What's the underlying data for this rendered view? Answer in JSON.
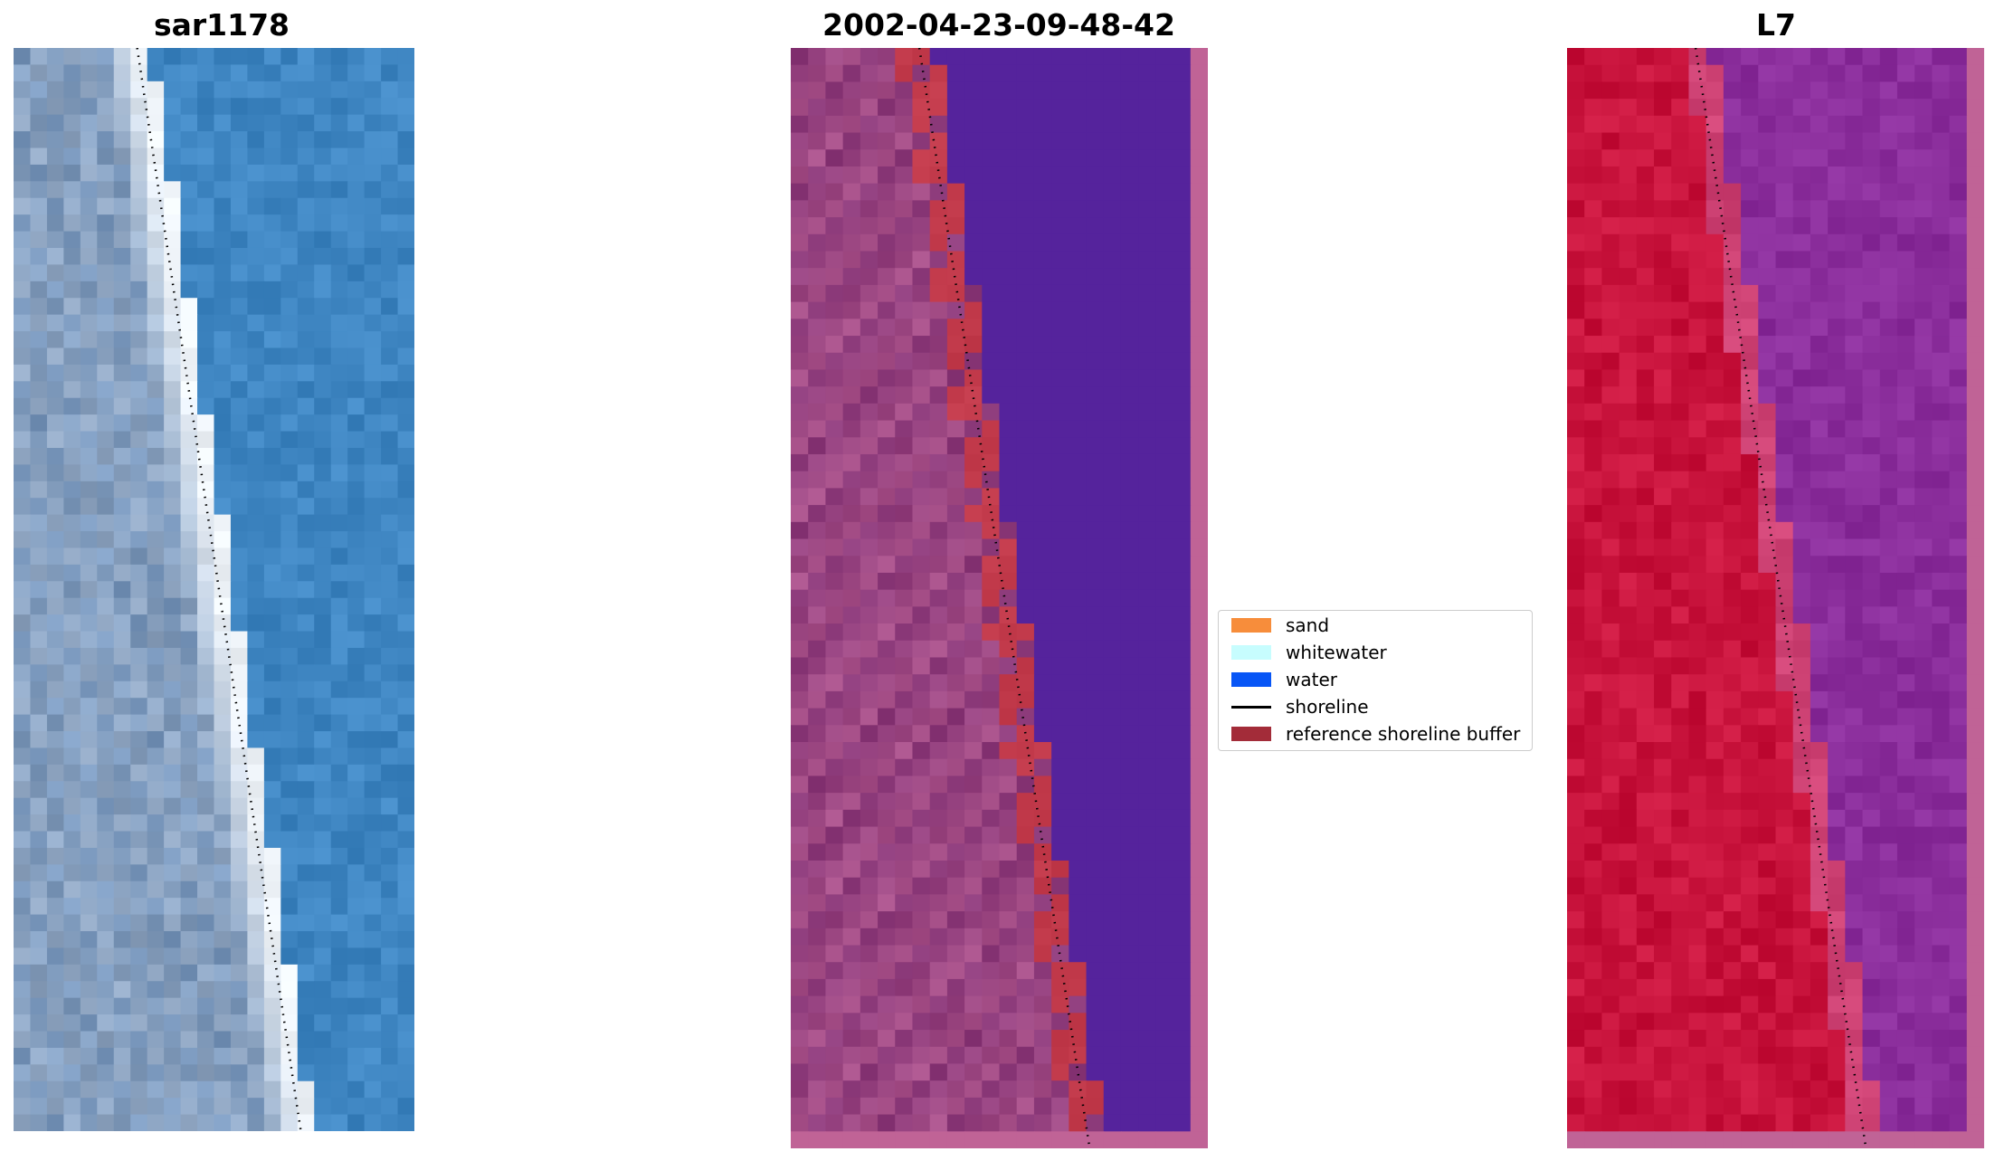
{
  "panels": [
    {
      "id": "rgb",
      "title": "sar1178"
    },
    {
      "id": "classified",
      "title": "2002-04-23-09-48-42"
    },
    {
      "id": "index",
      "title": "L7"
    }
  ],
  "legend": {
    "items": [
      {
        "label": "sand",
        "color": "#f78d3b",
        "kind": "patch"
      },
      {
        "label": "whitewater",
        "color": "#c7fdfe",
        "kind": "patch"
      },
      {
        "label": "water",
        "color": "#0856f6",
        "kind": "patch"
      },
      {
        "label": "shoreline",
        "color": "#000000",
        "kind": "line"
      },
      {
        "label": "reference shoreline buffer",
        "color": "#a32c39",
        "kind": "patch"
      }
    ]
  },
  "colors": {
    "rgb_water": "#3f86c2",
    "rgb_beach": "#eef3f8",
    "rgb_land": "#7a98bd",
    "class_water": "#55239c",
    "class_land": "#8c3a7a",
    "class_border": "#c06396",
    "class_buffer": "#c23a4b",
    "index_land": "#c8133c",
    "index_water": "#8a2d9b",
    "index_border": "#c06396"
  }
}
